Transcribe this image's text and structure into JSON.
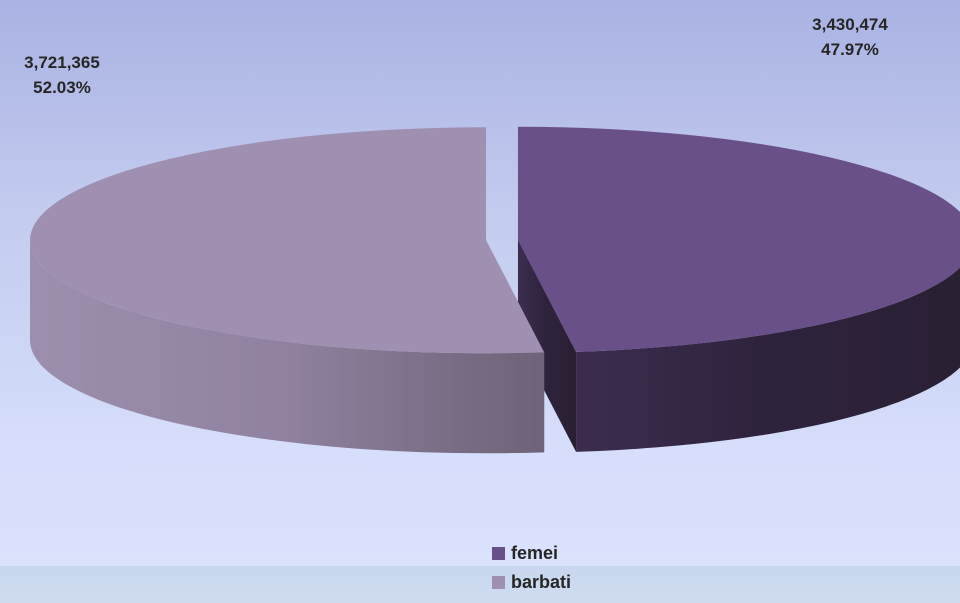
{
  "chart_data": {
    "type": "pie",
    "style": "3d-exploded",
    "title": "",
    "categories": [
      "femei",
      "barbati"
    ],
    "values": [
      3430474,
      3721365
    ],
    "percentages": [
      "47.97%",
      "52.03%"
    ],
    "value_labels": [
      "3,430,474",
      "3,721,365"
    ],
    "colors": [
      "#6a5089",
      "#9f8fb0"
    ],
    "legend_placement": "bottom"
  }
}
